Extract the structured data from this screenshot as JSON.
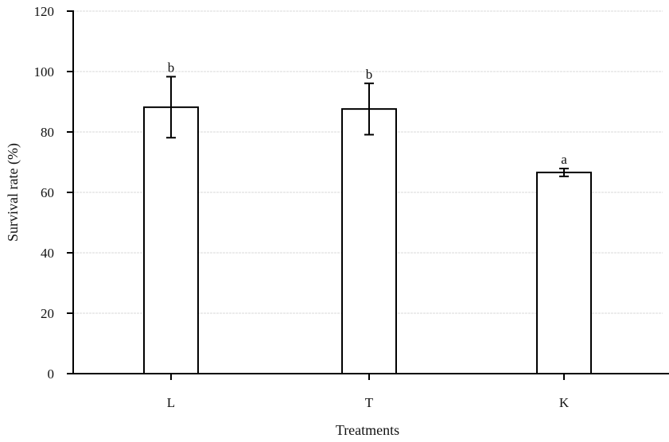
{
  "chart_data": {
    "type": "bar",
    "title": "",
    "xlabel": "Treatments",
    "ylabel": "Survival rate (%)",
    "ylim": [
      0,
      120
    ],
    "yticks": [
      0,
      20,
      40,
      60,
      80,
      100,
      120
    ],
    "grid": true,
    "legend": null,
    "categories": [
      "L",
      "T",
      "K"
    ],
    "values": [
      88.2,
      87.6,
      66.6
    ],
    "error": [
      10.1,
      8.5,
      1.3
    ],
    "significance_labels": [
      "b",
      "b",
      "a"
    ]
  },
  "colors": {
    "bar_fill": "#ffffff",
    "bar_stroke": "#000000",
    "axis": "#000000",
    "grid": "#d9d9d9"
  }
}
